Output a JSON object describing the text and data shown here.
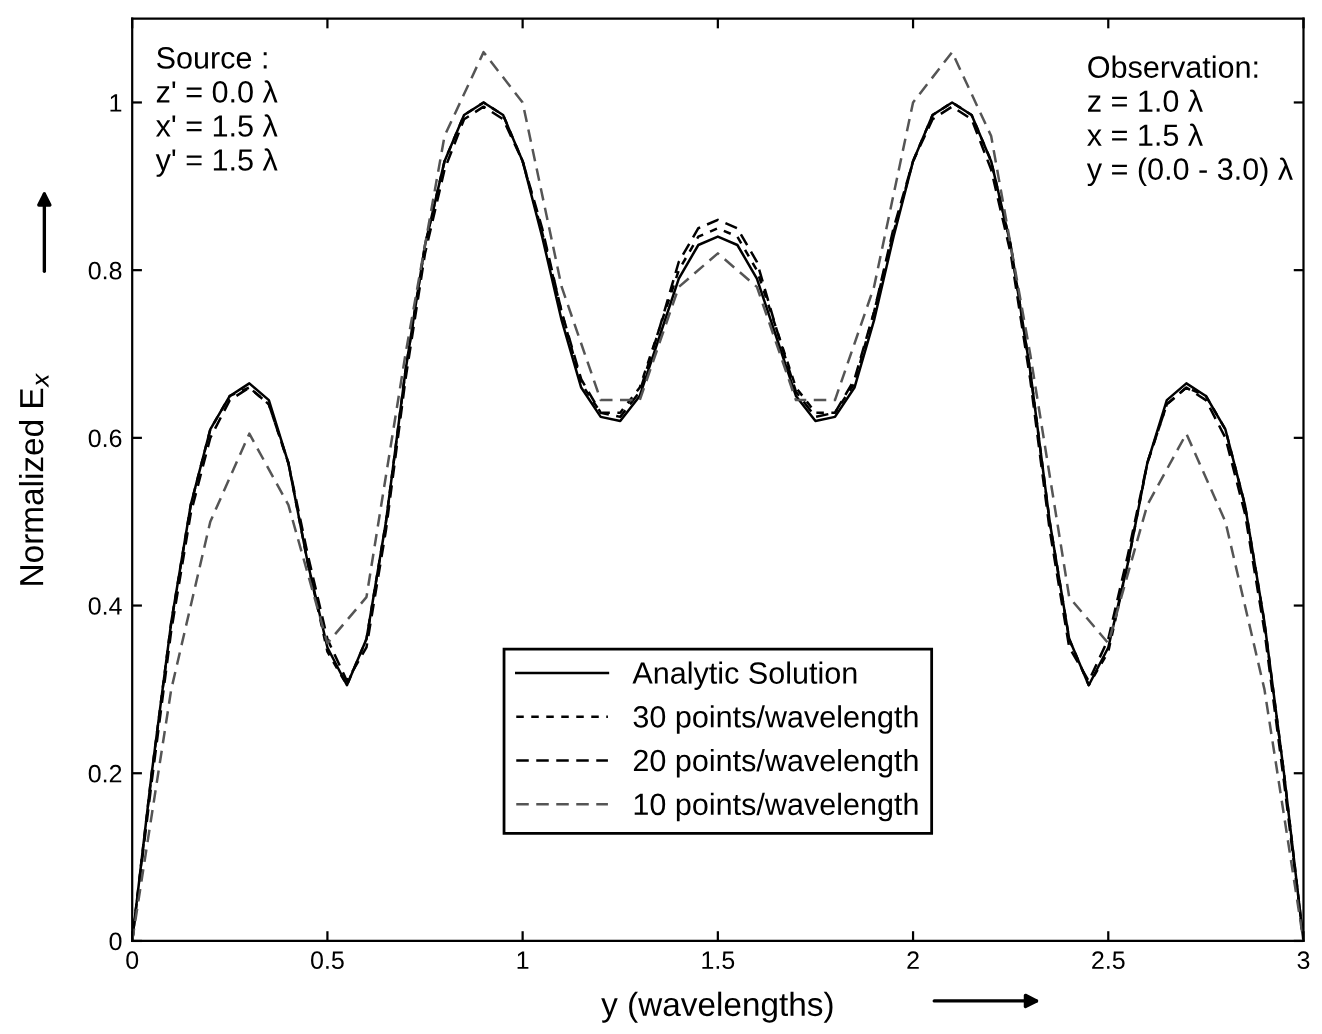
{
  "chart_data": {
    "type": "line",
    "xlabel": "y (wavelengths)",
    "ylabel": "Normalized E$_{x}$",
    "x": [
      0,
      0.05,
      0.1,
      0.15,
      0.2,
      0.25,
      0.3,
      0.35,
      0.4,
      0.45,
      0.5,
      0.55,
      0.6,
      0.65,
      0.7,
      0.75,
      0.8,
      0.85,
      0.9,
      0.95,
      1.0,
      1.05,
      1.1,
      1.15,
      1.2,
      1.25,
      1.3,
      1.35,
      1.4,
      1.45,
      1.5,
      1.55,
      1.6,
      1.65,
      1.7,
      1.75,
      1.8,
      1.85,
      1.9,
      1.95,
      2.0,
      2.05,
      2.1,
      2.15,
      2.2,
      2.25,
      2.3,
      2.35,
      2.4,
      2.45,
      2.5,
      2.55,
      2.6,
      2.65,
      2.7,
      2.75,
      2.8,
      2.85,
      2.9,
      2.95,
      3.0
    ],
    "series": [
      {
        "name": "Analytic Solution",
        "color": "#000000",
        "line_style": "solid",
        "values": [
          0,
          0.2,
          0.38,
          0.52,
          0.61,
          0.65,
          0.665,
          0.645,
          0.57,
          0.45,
          0.35,
          0.305,
          0.36,
          0.5,
          0.68,
          0.83,
          0.93,
          0.985,
          1.0,
          0.985,
          0.93,
          0.84,
          0.74,
          0.66,
          0.625,
          0.62,
          0.65,
          0.72,
          0.79,
          0.83,
          0.84,
          0.83,
          0.79,
          0.72,
          0.65,
          0.62,
          0.625,
          0.66,
          0.74,
          0.84,
          0.93,
          0.985,
          1.0,
          0.985,
          0.93,
          0.83,
          0.68,
          0.5,
          0.36,
          0.305,
          0.35,
          0.45,
          0.57,
          0.645,
          0.665,
          0.65,
          0.61,
          0.52,
          0.38,
          0.2,
          0
        ]
      },
      {
        "name": "30 points/wavelength",
        "color": "#000000",
        "line_style": "dotted",
        "values": [
          0,
          0.2,
          0.38,
          0.52,
          0.61,
          0.65,
          0.66,
          0.64,
          0.57,
          0.45,
          0.345,
          0.305,
          0.36,
          0.5,
          0.68,
          0.83,
          0.93,
          0.985,
          1.0,
          0.985,
          0.93,
          0.845,
          0.75,
          0.665,
          0.63,
          0.63,
          0.66,
          0.73,
          0.8,
          0.84,
          0.85,
          0.84,
          0.8,
          0.73,
          0.66,
          0.63,
          0.63,
          0.665,
          0.75,
          0.845,
          0.93,
          0.985,
          1.0,
          0.985,
          0.93,
          0.83,
          0.68,
          0.5,
          0.36,
          0.305,
          0.345,
          0.45,
          0.57,
          0.64,
          0.66,
          0.65,
          0.61,
          0.52,
          0.38,
          0.2,
          0
        ]
      },
      {
        "name": "20 points/wavelength",
        "color": "#000000",
        "line_style": "dashed",
        "values": [
          0,
          0.19,
          0.37,
          0.51,
          0.6,
          0.645,
          0.66,
          0.64,
          0.57,
          0.46,
          0.36,
          0.31,
          0.35,
          0.49,
          0.67,
          0.82,
          0.92,
          0.98,
          0.995,
          0.98,
          0.93,
          0.85,
          0.75,
          0.67,
          0.63,
          0.625,
          0.655,
          0.73,
          0.81,
          0.85,
          0.86,
          0.85,
          0.81,
          0.73,
          0.655,
          0.625,
          0.63,
          0.67,
          0.75,
          0.85,
          0.93,
          0.98,
          0.995,
          0.98,
          0.92,
          0.82,
          0.67,
          0.49,
          0.35,
          0.31,
          0.36,
          0.46,
          0.57,
          0.64,
          0.66,
          0.645,
          0.6,
          0.51,
          0.37,
          0.19,
          0
        ]
      },
      {
        "name": "10 points/wavelength",
        "color": "#555555",
        "line_style": "dashed",
        "x": [
          0,
          0.1,
          0.2,
          0.3,
          0.4,
          0.5,
          0.6,
          0.7,
          0.8,
          0.9,
          1.0,
          1.1,
          1.2,
          1.3,
          1.4,
          1.5,
          1.6,
          1.7,
          1.8,
          1.9,
          2.0,
          2.1,
          2.2,
          2.3,
          2.4,
          2.5,
          2.6,
          2.7,
          2.8,
          2.9,
          3.0
        ],
        "values": [
          0,
          0.3,
          0.5,
          0.605,
          0.52,
          0.355,
          0.41,
          0.7,
          0.96,
          1.06,
          1.0,
          0.78,
          0.645,
          0.645,
          0.78,
          0.82,
          0.78,
          0.645,
          0.645,
          0.78,
          1.0,
          1.06,
          0.96,
          0.7,
          0.41,
          0.355,
          0.52,
          0.605,
          0.5,
          0.3,
          0
        ]
      }
    ],
    "xlim": [
      0,
      3
    ],
    "ylim": [
      0,
      1.1
    ],
    "xticks": [
      0,
      0.5,
      1,
      1.5,
      2,
      2.5,
      3
    ],
    "yticks": [
      0,
      0.2,
      0.4,
      0.6,
      0.8,
      1
    ],
    "grid": false,
    "legend": "bottom",
    "marker": "none",
    "annotations": [
      "Source :\nz' = 0.0 λ\nx' = 1.5 λ\ny' = 1.5 λ",
      "Observation:\nz = 1.0 λ\nx = 1.5 λ\ny = (0.0 - 3.0) λ"
    ]
  }
}
